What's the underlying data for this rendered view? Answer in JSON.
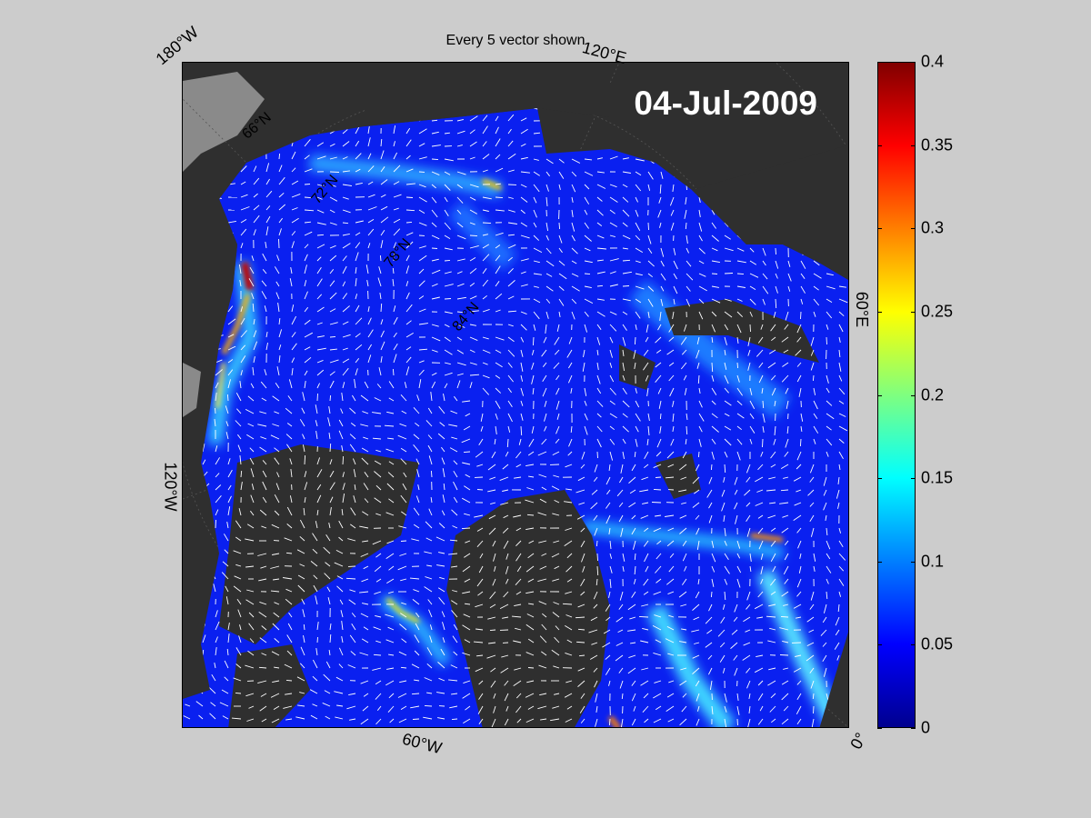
{
  "title": "Every 5 vector shown",
  "date": "04-Jul-2009",
  "lon_labels": {
    "w180": "180°W",
    "e120": "120°E",
    "e60": "60°E",
    "w120": "120°W",
    "w60": "60°W",
    "zero": "0°"
  },
  "lat_labels": {
    "n66": "66°N",
    "n72": "72°N",
    "n78": "78°N",
    "n84": "84°N"
  },
  "colorbar": {
    "min": 0,
    "max": 0.4,
    "ticks": [
      "0",
      "0.05",
      "0.1",
      "0.15",
      "0.2",
      "0.25",
      "0.3",
      "0.35",
      "0.4"
    ],
    "colormap": "jet"
  },
  "colors": {
    "background": "#cccccc",
    "land": "#2f2f2f",
    "ocean_low": "#0a1cf0",
    "vectors": "#ffffff"
  }
}
